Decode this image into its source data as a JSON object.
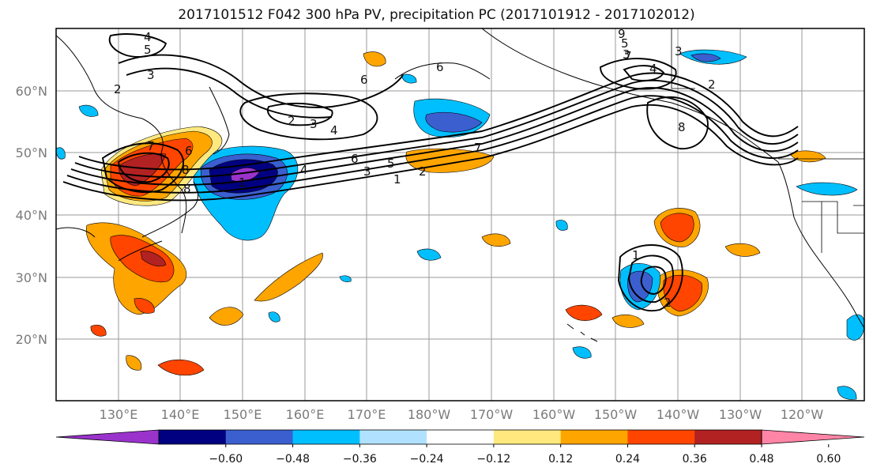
{
  "title": "2017101512 F042 300 hPa PV, precipitation PC (2017101912 - 2017102012)",
  "lat_labels": [
    "60°N",
    "50°N",
    "40°N",
    "30°N",
    "20°N"
  ],
  "lon_labels": [
    "130°E",
    "140°E",
    "150°E",
    "160°E",
    "170°E",
    "180°W",
    "170°W",
    "160°W",
    "150°W",
    "140°W",
    "130°W",
    "120°W"
  ],
  "colorbar": {
    "tick_labels": [
      "−0.60",
      "−0.48",
      "−0.36",
      "−0.24",
      "−0.12",
      "0.12",
      "0.24",
      "0.36",
      "0.48",
      "0.60"
    ],
    "colors": [
      "#9a33cc",
      "#000080",
      "#3b5fcf",
      "#00bfff",
      "#b0e2ff",
      "#ffffff",
      "#ffe97f",
      "#ffa500",
      "#ff4500",
      "#b22222",
      "#ff85a7"
    ]
  },
  "pv_contour_labels": [
    "4",
    "3",
    "2",
    "5",
    "6",
    "3",
    "2",
    "6",
    "7",
    "3",
    "4",
    "2",
    "8",
    "1",
    "8",
    "7",
    "6",
    "5",
    "4",
    "3",
    "2",
    "1",
    "7",
    "9",
    "8",
    "6",
    "5",
    "4",
    "3",
    "2",
    "1",
    "6",
    "3",
    "4",
    "2",
    "1",
    "5",
    "4",
    "3",
    "2",
    "1",
    "2"
  ]
}
